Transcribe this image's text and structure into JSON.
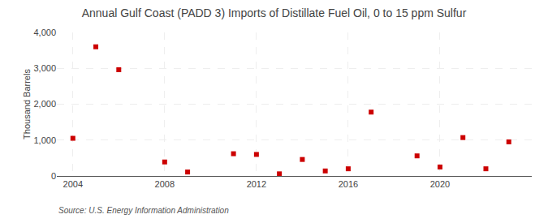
{
  "chart_data": {
    "type": "scatter",
    "title": "Annual Gulf Coast (PADD 3) Imports of Distillate Fuel Oil, 0 to 15 ppm Sulfur",
    "ylabel": "Thousand Barrels",
    "source": "Source: U.S. Energy Information Administration",
    "x": [
      2004,
      2005,
      2006,
      2008,
      2009,
      2011,
      2012,
      2013,
      2014,
      2015,
      2016,
      2017,
      2019,
      2020,
      2021,
      2022,
      2023
    ],
    "values": [
      1050,
      3600,
      2960,
      390,
      110,
      620,
      600,
      60,
      460,
      140,
      200,
      1780,
      560,
      250,
      1070,
      200,
      950
    ],
    "color": "#cc0000",
    "marker": "square",
    "xlim": [
      2003.3,
      2024.0
    ],
    "xticks": [
      2004,
      2008,
      2012,
      2016,
      2020
    ],
    "ylim": [
      0,
      4000
    ],
    "yticks": [
      0,
      {
        "value": 1000,
        "label": "1,000"
      },
      {
        "value": 2000,
        "label": "2,000"
      },
      {
        "value": 3000,
        "label": "3,000"
      },
      {
        "value": 4000,
        "label": "4,000"
      }
    ],
    "grid": true
  }
}
